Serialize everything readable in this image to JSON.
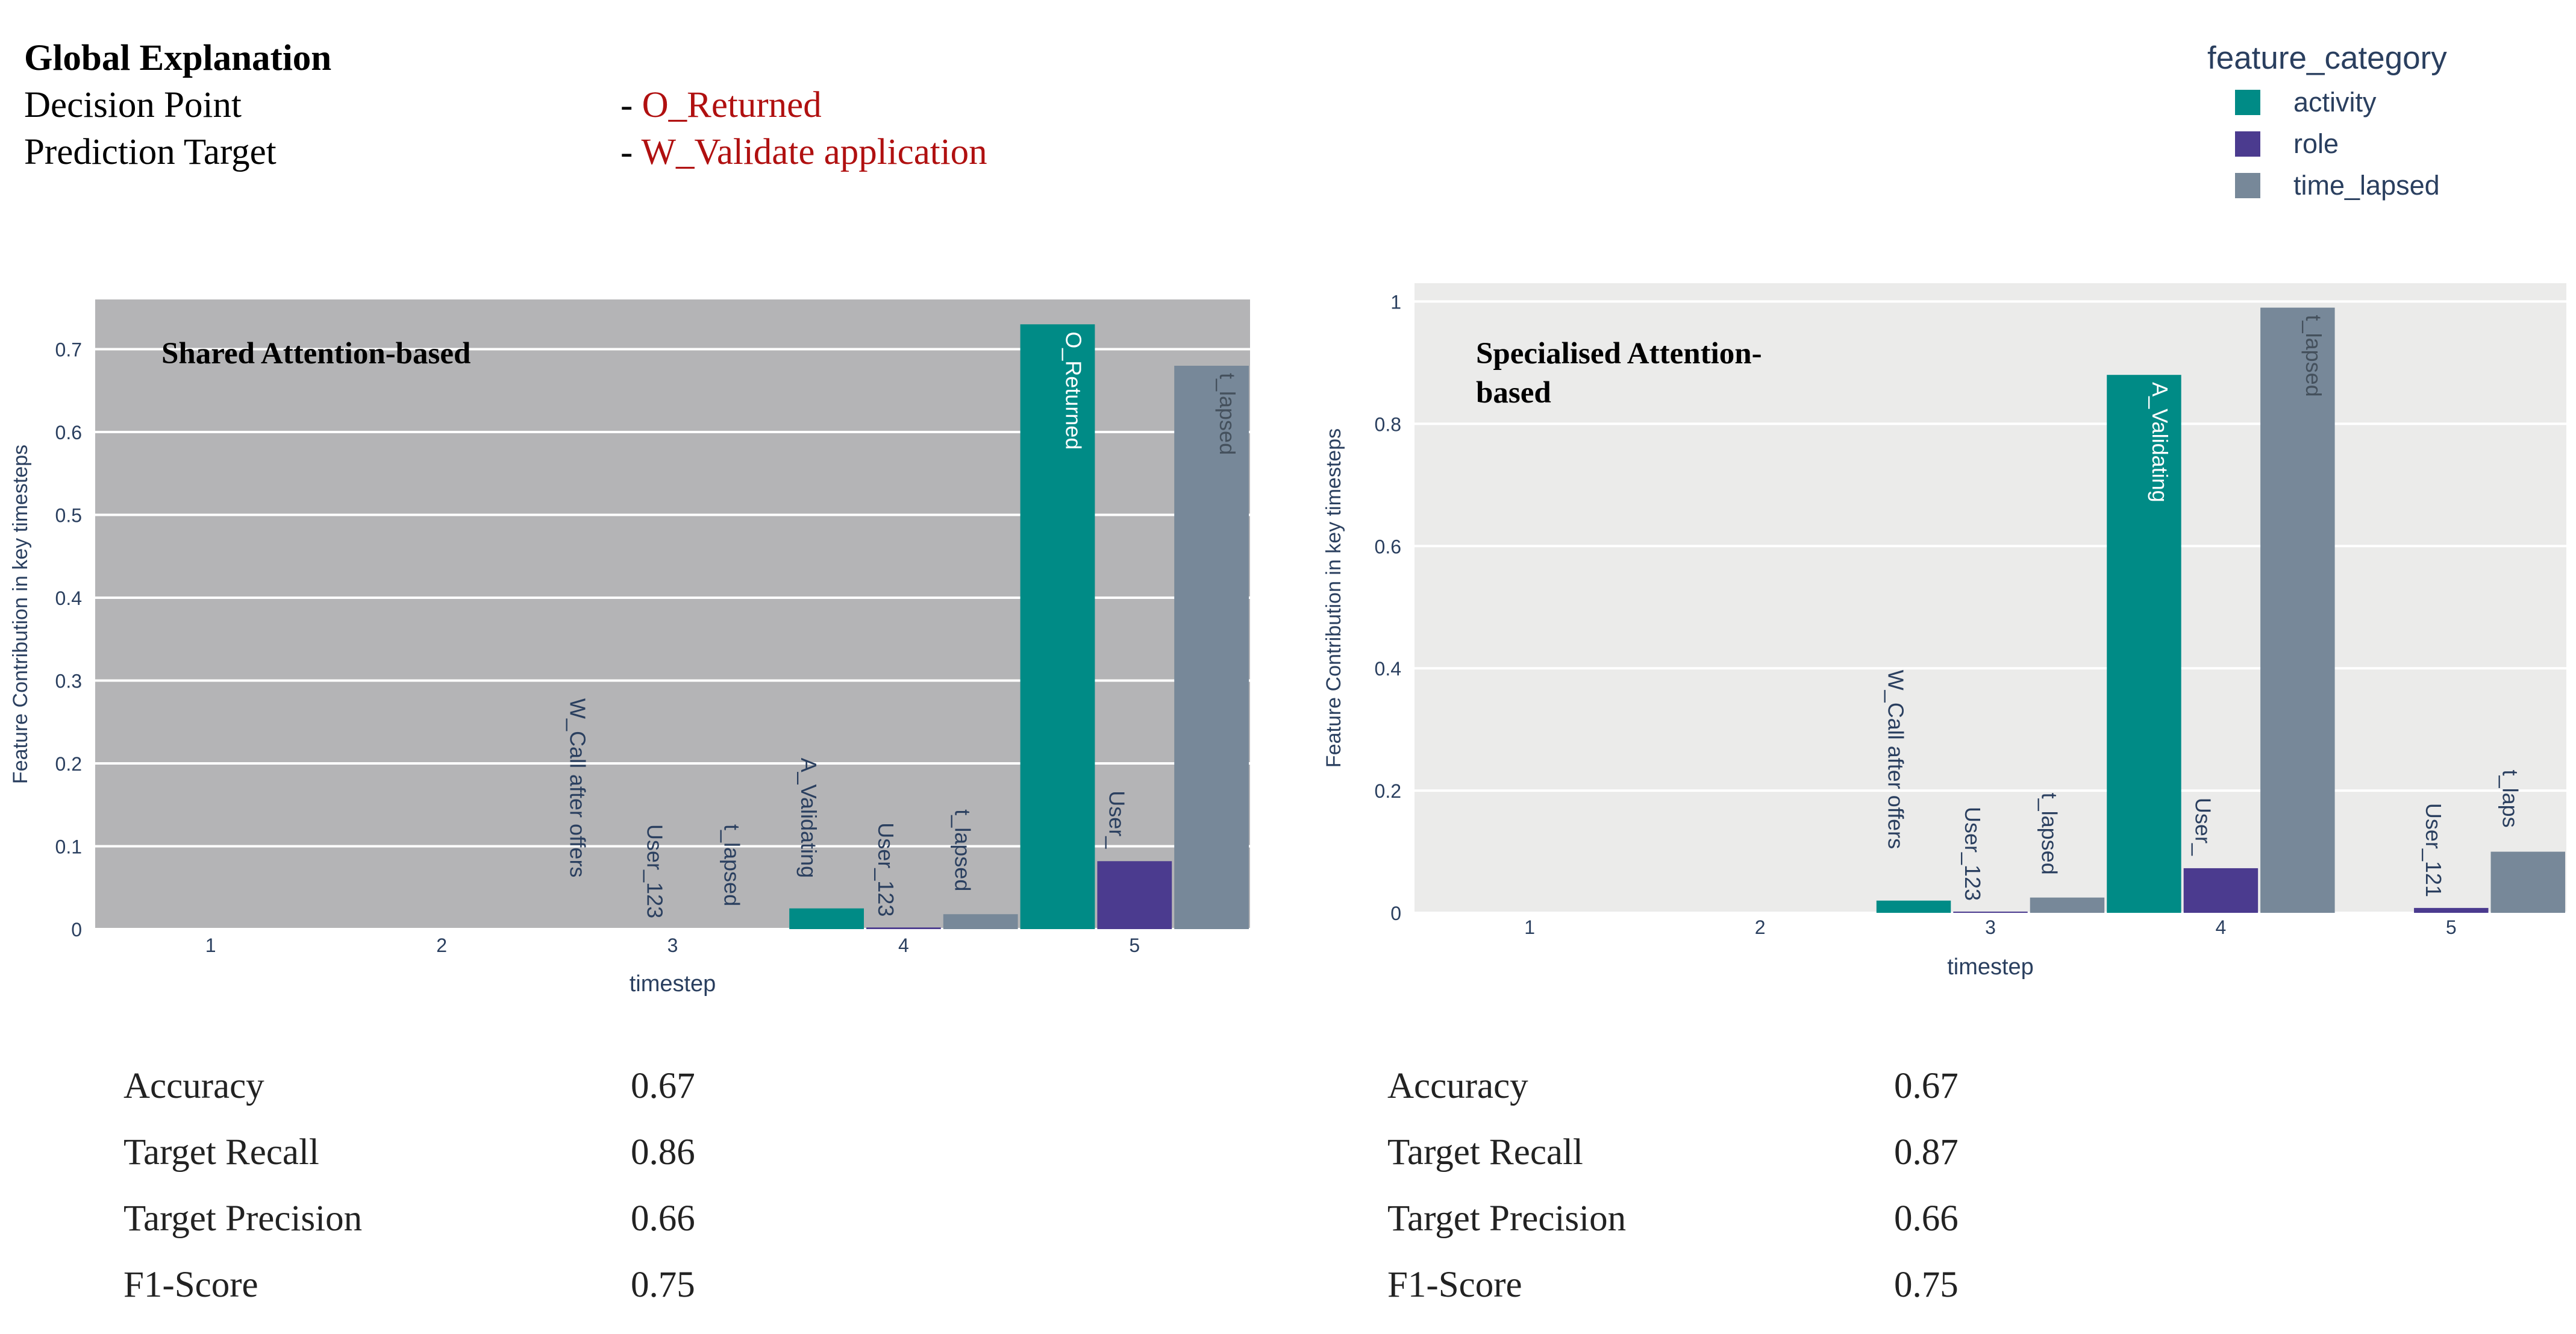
{
  "header": {
    "title": "Global Explanation",
    "decision_point_label": "Decision Point",
    "decision_point_dash": "- ",
    "decision_point_value": "O_Returned",
    "prediction_target_label": "Prediction Target",
    "prediction_target_dash": "- ",
    "prediction_target_value": "W_Validate application"
  },
  "legend": {
    "title": "feature_category",
    "items": [
      {
        "name": "activity",
        "color": "#008b86"
      },
      {
        "name": "role",
        "color": "#4b3b8f"
      },
      {
        "name": "time_lapsed",
        "color": "#778899"
      }
    ]
  },
  "chart_data": [
    {
      "type": "bar",
      "title": "Shared Attention-based",
      "xlabel": "timestep",
      "ylabel": "Feature Contribution in key timesteps",
      "categories": [
        "1",
        "2",
        "3",
        "4",
        "5"
      ],
      "ylim": [
        0,
        0.76
      ],
      "yticks": [
        0,
        0.1,
        0.2,
        0.3,
        0.4,
        0.5,
        0.6,
        0.7
      ],
      "ytick_labels": [
        "0",
        "0.1",
        "0.2",
        "0.3",
        "0.4",
        "0.5",
        "0.6",
        "0.7"
      ],
      "background": "#b4b4b6",
      "series": [
        {
          "name": "activity",
          "values": [
            0,
            0,
            0,
            0.025,
            0.73
          ],
          "labels": [
            "",
            "",
            "W_Call after offers",
            "A_Validating",
            "O_Returned"
          ]
        },
        {
          "name": "role",
          "values": [
            0,
            0,
            0,
            0.002,
            0.082
          ],
          "labels": [
            "",
            "",
            "User_123",
            "User_123",
            "User_"
          ]
        },
        {
          "name": "time_lapsed",
          "values": [
            0,
            0,
            0,
            0.018,
            0.68
          ],
          "labels": [
            "",
            "",
            "t_lapsed",
            "t_lapsed",
            "t_lapsed"
          ]
        }
      ]
    },
    {
      "type": "bar",
      "title": "Specialised Attention-based",
      "xlabel": "timestep",
      "ylabel": "Feature Contribution in key timesteps",
      "categories": [
        "1",
        "2",
        "3",
        "4",
        "5"
      ],
      "ylim": [
        0,
        1.03
      ],
      "yticks": [
        0,
        0.2,
        0.4,
        0.6,
        0.8,
        1
      ],
      "ytick_labels": [
        "0",
        "0.2",
        "0.4",
        "0.6",
        "0.8",
        "1"
      ],
      "background": "#ebebea",
      "series": [
        {
          "name": "activity",
          "values": [
            0,
            0,
            0.02,
            0.88,
            0
          ],
          "labels": [
            "",
            "",
            "W_Call after offers",
            "A_Validating",
            ""
          ]
        },
        {
          "name": "role",
          "values": [
            0,
            0,
            0.002,
            0.073,
            0.008
          ],
          "labels": [
            "",
            "",
            "User_123",
            "User_",
            "User_121"
          ]
        },
        {
          "name": "time_lapsed",
          "values": [
            0,
            0,
            0.025,
            0.99,
            0.1
          ],
          "labels": [
            "",
            "",
            "t_lapsed",
            "t_lapsed",
            "t_laps"
          ]
        }
      ]
    }
  ],
  "metrics": [
    {
      "rows": [
        {
          "label": "Accuracy",
          "value": "0.67"
        },
        {
          "label": "Target Recall",
          "value": "0.86"
        },
        {
          "label": "Target Precision",
          "value": "0.66"
        },
        {
          "label": "F1-Score",
          "value": "0.75"
        }
      ]
    },
    {
      "rows": [
        {
          "label": "Accuracy",
          "value": "0.67"
        },
        {
          "label": "Target Recall",
          "value": "0.87"
        },
        {
          "label": "Target Precision",
          "value": "0.66"
        },
        {
          "label": "F1-Score",
          "value": "0.75"
        }
      ]
    }
  ]
}
